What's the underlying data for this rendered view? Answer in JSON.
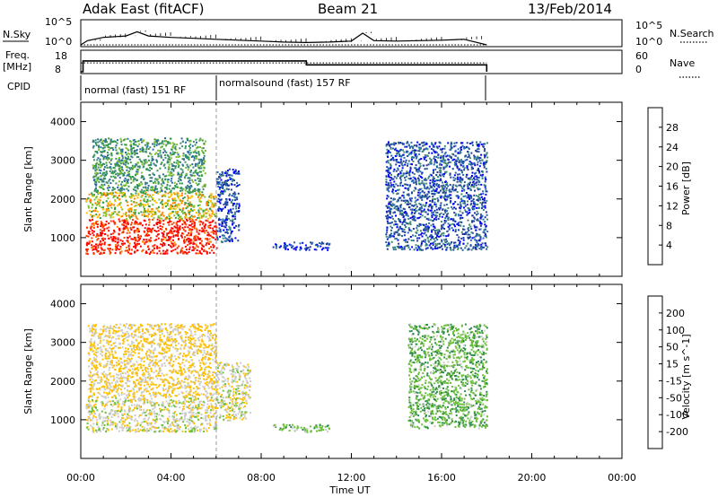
{
  "header": {
    "station": "Adak East (fitACF)",
    "beam": "Beam 21",
    "date": "13/Feb/2014"
  },
  "strip_labels": {
    "nsky": "N.Sky",
    "nsky_ticks": [
      "10^5",
      "10^0"
    ],
    "nsearch": "N.Search",
    "freq_lines": [
      "Freq.",
      "[MHz]"
    ],
    "freq_ticks": [
      "18",
      "8"
    ],
    "nave": "Nave",
    "nave_ticks": [
      "60",
      "0"
    ],
    "cpid": "CPID",
    "modes": [
      "normal (fast) 151 RF",
      "normalsound (fast) 157 RF"
    ]
  },
  "axes": {
    "ylabel": "Slant Range [km]",
    "xlabel": "Time UT",
    "y_ticks": [
      "4000",
      "3000",
      "2000",
      "1000"
    ],
    "x_ticks": [
      "00:00",
      "04:00",
      "08:00",
      "12:00",
      "16:00",
      "20:00",
      "00:00"
    ]
  },
  "colorbars": {
    "power": {
      "label": "Power [dB]",
      "ticks": [
        "28",
        "24",
        "20",
        "16",
        "12",
        "8",
        "4"
      ],
      "colors": [
        "#0000ff",
        "#1e3c9e",
        "#2a6aa8",
        "#3f8a6e",
        "#2f9a49",
        "#7fc02a",
        "#ffc000",
        "#ff8000",
        "#ff4000",
        "#ff0000"
      ]
    },
    "velocity": {
      "label": "Velocity [m s^-1]",
      "ticks": [
        "200",
        "100",
        "50",
        "15",
        "-15",
        "-50",
        "-100",
        "-200"
      ],
      "colors": [
        "#1a2e9e",
        "#2a6aa8",
        "#2e8a4e",
        "#6cc03a",
        "#cccccc",
        "#ffc000",
        "#ff8000",
        "#ff4000",
        "#ff0000"
      ]
    }
  },
  "chart_data": [
    {
      "type": "line",
      "title": "N.Sky",
      "x_unit": "hours UT",
      "x": [
        0.0,
        0.3,
        1.0,
        2.0,
        2.5,
        3.0,
        4.0,
        5.0,
        6.0,
        7.0,
        8.0,
        9.0,
        10.0,
        11.0,
        12.0,
        12.5,
        13.0,
        14.0,
        15.0,
        16.0,
        17.0,
        18.0
      ],
      "y_log10": [
        0.0,
        0.9,
        1.6,
        1.9,
        2.8,
        1.9,
        1.6,
        1.4,
        1.2,
        1.0,
        0.8,
        0.6,
        0.5,
        0.6,
        0.8,
        2.5,
        0.9,
        0.8,
        0.9,
        1.0,
        1.2,
        0.0
      ],
      "ylim_log10": [
        0,
        5
      ],
      "yticks": [
        "10^0",
        "10^5"
      ]
    },
    {
      "type": "line",
      "title": "Freq. [MHz]",
      "x": [
        0.0,
        0.1,
        10.0,
        18.0
      ],
      "y": [
        8,
        13.5,
        11.5,
        8
      ],
      "ylim": [
        8,
        18
      ]
    },
    {
      "type": "line",
      "title": "Nave",
      "x": [
        0.0,
        18.0
      ],
      "y": [
        27,
        27
      ],
      "ylim": [
        0,
        60
      ]
    },
    {
      "type": "heatmap",
      "title": "Power [dB]",
      "xlabel": "Time UT",
      "ylabel": "Slant Range [km]",
      "xlim_hours": [
        0,
        24
      ],
      "ylim_km": [
        0,
        4500
      ],
      "colorbar_range": [
        0,
        30
      ],
      "regions": [
        {
          "t_start": 0.2,
          "t_end": 6.0,
          "r_start": 600,
          "r_end": 1500,
          "power": 28
        },
        {
          "t_start": 0.2,
          "t_end": 6.0,
          "r_start": 1500,
          "r_end": 2200,
          "power": 18
        },
        {
          "t_start": 0.5,
          "t_end": 5.5,
          "r_start": 2200,
          "r_end": 3600,
          "power": 12
        },
        {
          "t_start": 6.0,
          "t_end": 7.0,
          "r_start": 900,
          "r_end": 2800,
          "power": 5
        },
        {
          "t_start": 8.5,
          "t_end": 11.0,
          "r_start": 700,
          "r_end": 900,
          "power": 4
        },
        {
          "t_start": 13.5,
          "t_end": 18.0,
          "r_start": 700,
          "r_end": 3500,
          "power": 6
        }
      ]
    },
    {
      "type": "heatmap",
      "title": "Velocity [m s^-1]",
      "xlabel": "Time UT",
      "ylabel": "Slant Range [km]",
      "xlim_hours": [
        0,
        24
      ],
      "ylim_km": [
        0,
        4500
      ],
      "colorbar_range": [
        -250,
        250
      ],
      "regions": [
        {
          "t_start": 0.2,
          "t_end": 6.0,
          "r_start": 700,
          "r_end": 1600,
          "velocity": 0
        },
        {
          "t_start": 0.3,
          "t_end": 6.0,
          "r_start": 1600,
          "r_end": 3500,
          "velocity": -20
        },
        {
          "t_start": 6.0,
          "t_end": 7.5,
          "r_start": 1000,
          "r_end": 2500,
          "velocity": 0
        },
        {
          "t_start": 8.5,
          "t_end": 11.0,
          "r_start": 700,
          "r_end": 900,
          "velocity": 30
        },
        {
          "t_start": 14.5,
          "t_end": 18.0,
          "r_start": 800,
          "r_end": 3500,
          "velocity": 40
        }
      ]
    }
  ]
}
